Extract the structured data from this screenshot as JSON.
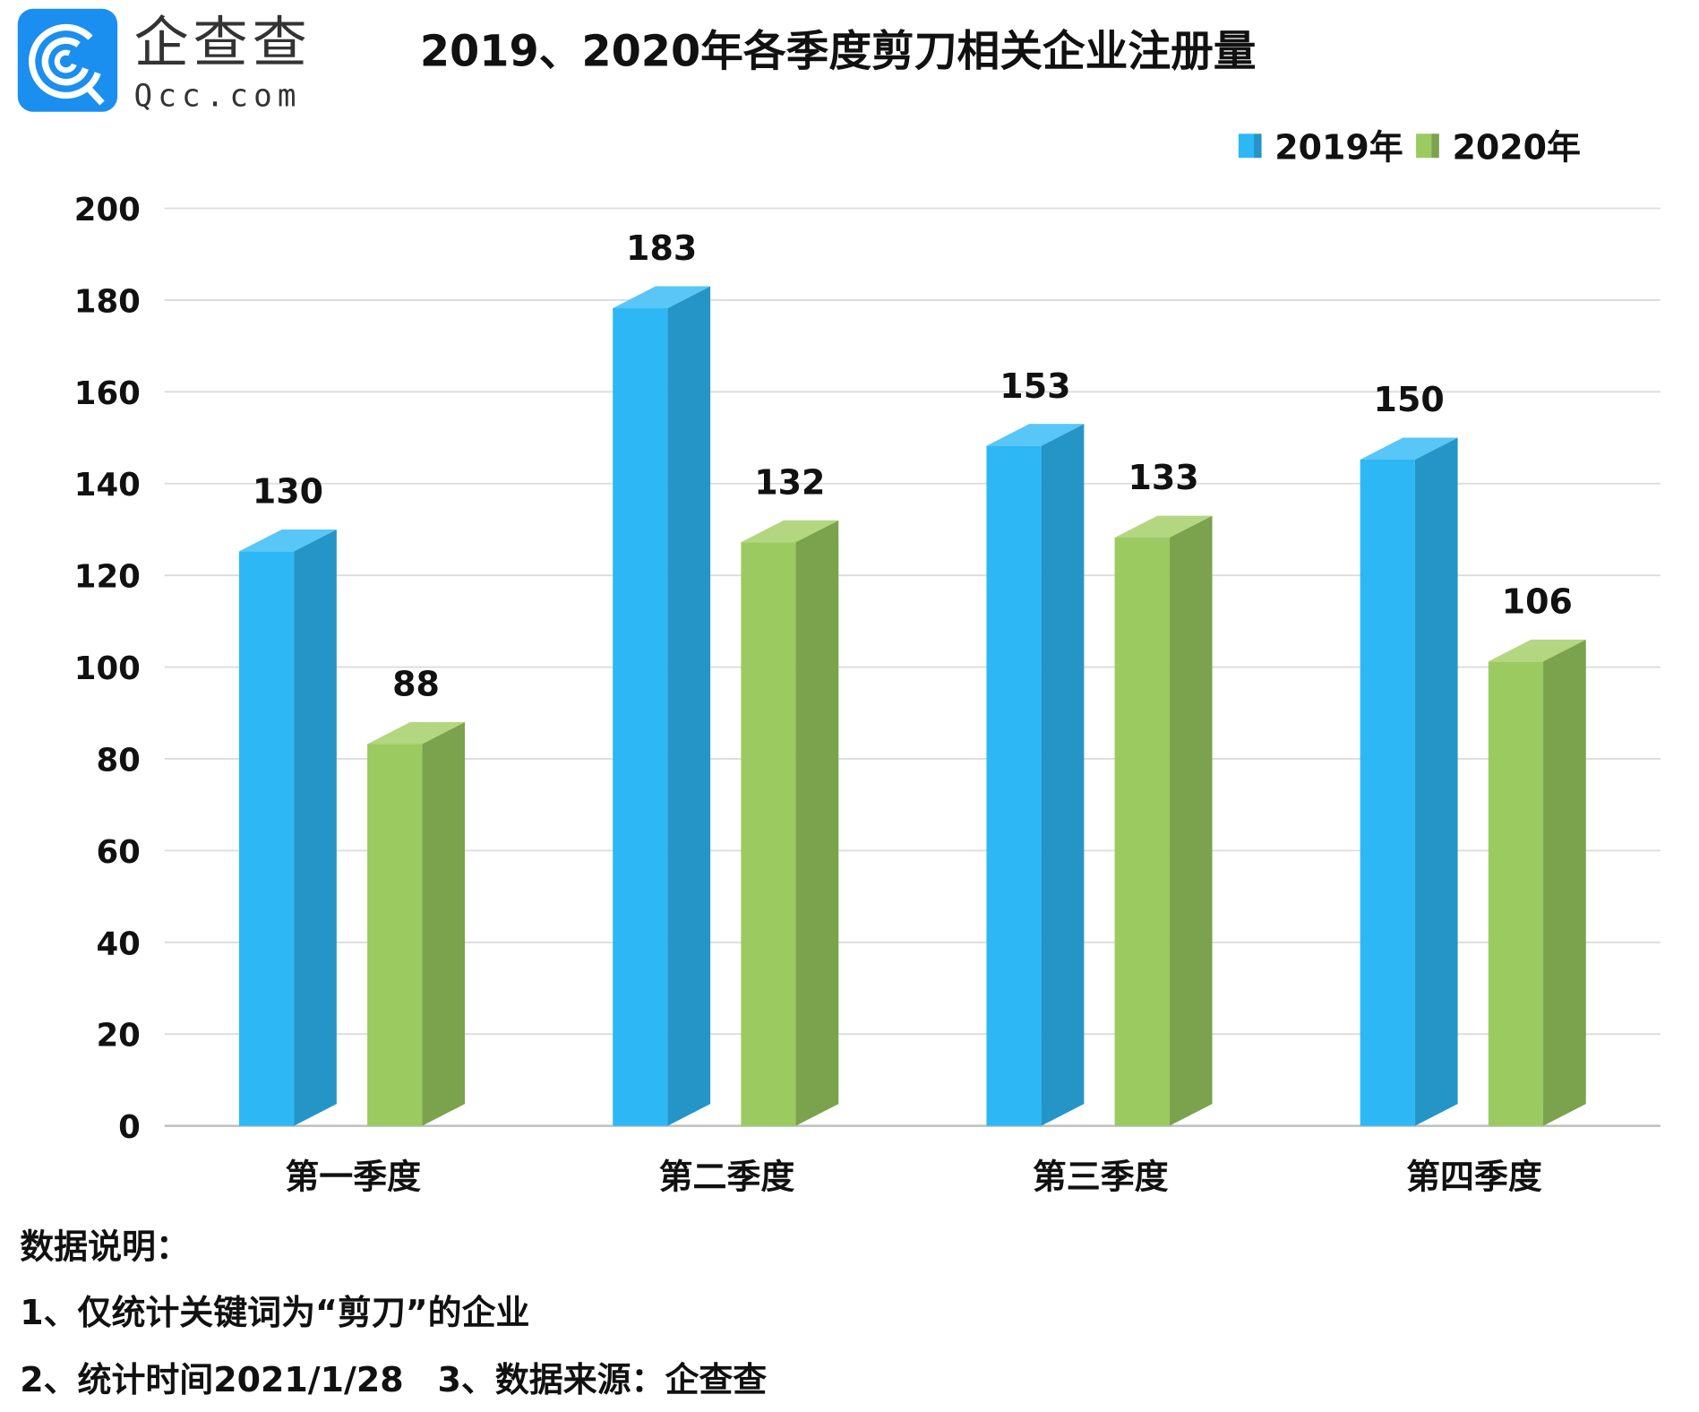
{
  "logo": {
    "brand_cn": "企查查",
    "brand_en": "Qcc.com",
    "color": "#1a8ff0"
  },
  "chart_data": {
    "type": "bar",
    "title": "2019、2020年各季度剪刀相关企业注册量",
    "categories": [
      "第一季度",
      "第二季度",
      "第三季度",
      "第四季度"
    ],
    "series": [
      {
        "name": "2019年",
        "values": [
          130,
          183,
          153,
          150
        ],
        "color": "#2db8f5"
      },
      {
        "name": "2020年",
        "values": [
          88,
          132,
          133,
          106
        ],
        "color": "#9aca60"
      }
    ],
    "ylim": [
      0,
      200
    ],
    "yticks": [
      0,
      20,
      40,
      60,
      80,
      100,
      120,
      140,
      160,
      180,
      200
    ],
    "grid": true,
    "legend": "top-right",
    "style": "3d-column"
  },
  "notes": {
    "heading": "数据说明：",
    "line1": "1、仅统计关键词为“剪刀”的企业",
    "line2": "2、统计时间2021/1/28　3、数据来源：企查查"
  }
}
